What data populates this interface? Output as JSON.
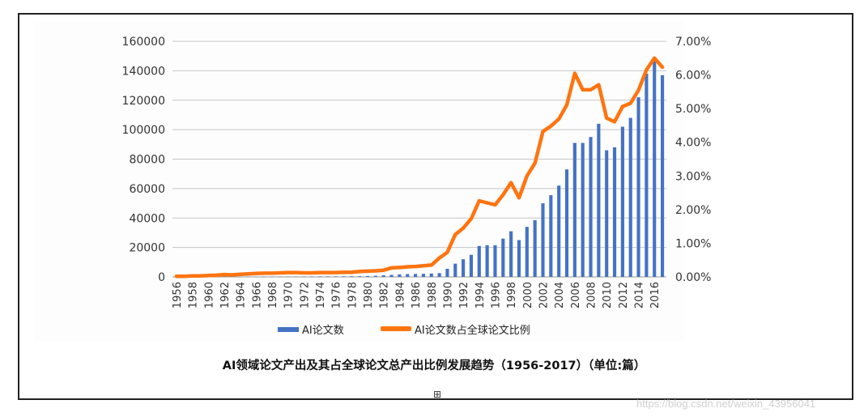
{
  "caption": "AI领域论文产出及其占全球论文总产出比例发展趋势（1956-2017）（单位:篇）",
  "watermark": "https://blog.csdn.net/weixin_43956041",
  "chart_data": {
    "type": "bar+line",
    "title": "",
    "x": [
      1956,
      1957,
      1958,
      1959,
      1960,
      1961,
      1962,
      1963,
      1964,
      1965,
      1966,
      1967,
      1968,
      1969,
      1970,
      1971,
      1972,
      1973,
      1974,
      1975,
      1976,
      1977,
      1978,
      1979,
      1980,
      1981,
      1982,
      1983,
      1984,
      1985,
      1986,
      1987,
      1988,
      1989,
      1990,
      1991,
      1992,
      1993,
      1994,
      1995,
      1996,
      1997,
      1998,
      1999,
      2000,
      2001,
      2002,
      2003,
      2004,
      2005,
      2006,
      2007,
      2008,
      2009,
      2010,
      2011,
      2012,
      2013,
      2014,
      2015,
      2016,
      2017
    ],
    "x_tick_labels": [
      "1956",
      "1958",
      "1960",
      "1962",
      "1964",
      "1966",
      "1968",
      "1970",
      "1972",
      "1974",
      "1976",
      "1978",
      "1980",
      "1982",
      "1984",
      "1986",
      "1988",
      "1990",
      "1992",
      "1994",
      "1996",
      "1998",
      "2000",
      "2002",
      "2004",
      "2006",
      "2008",
      "2010",
      "2012",
      "2014",
      "2016"
    ],
    "left_axis": {
      "ylim": [
        0,
        160000
      ],
      "ticks": [
        "0",
        "20000",
        "40000",
        "60000",
        "80000",
        "100000",
        "120000",
        "140000",
        "160000"
      ]
    },
    "right_axis": {
      "ylim": [
        0,
        7
      ],
      "ticks": [
        "0.00%",
        "1.00%",
        "2.00%",
        "3.00%",
        "4.00%",
        "5.00%",
        "6.00%",
        "7.00%"
      ]
    },
    "grid": true,
    "legend_position": "bottom",
    "series": [
      {
        "name": "AI论文数",
        "kind": "bar",
        "axis": "left",
        "color": "#4472c4",
        "values": [
          50,
          60,
          70,
          80,
          90,
          100,
          110,
          120,
          130,
          140,
          160,
          180,
          200,
          220,
          250,
          260,
          280,
          300,
          320,
          340,
          370,
          400,
          450,
          500,
          600,
          800,
          1100,
          1400,
          1700,
          1900,
          2000,
          2100,
          2300,
          2600,
          5500,
          9000,
          12000,
          15000,
          21000,
          21500,
          21500,
          26000,
          31000,
          25000,
          34000,
          38500,
          50000,
          55500,
          62000,
          73000,
          91000,
          91000,
          95000,
          104000,
          86000,
          88000,
          102000,
          108000,
          122000,
          138000,
          147000,
          137000
        ]
      },
      {
        "name": "AI论文数占全球论文比例",
        "kind": "line",
        "axis": "right",
        "color": "#ff7410",
        "values": [
          0.02,
          0.02,
          0.03,
          0.03,
          0.04,
          0.05,
          0.07,
          0.06,
          0.08,
          0.09,
          0.1,
          0.11,
          0.11,
          0.12,
          0.13,
          0.13,
          0.12,
          0.12,
          0.13,
          0.13,
          0.13,
          0.14,
          0.14,
          0.16,
          0.17,
          0.18,
          0.2,
          0.27,
          0.28,
          0.3,
          0.31,
          0.33,
          0.35,
          0.56,
          0.73,
          1.26,
          1.45,
          1.73,
          2.26,
          2.2,
          2.14,
          2.44,
          2.8,
          2.35,
          3.0,
          3.38,
          4.32,
          4.48,
          4.69,
          5.11,
          6.05,
          5.56,
          5.56,
          5.71,
          4.72,
          4.61,
          5.06,
          5.16,
          5.55,
          6.15,
          6.5,
          6.23
        ]
      }
    ]
  }
}
